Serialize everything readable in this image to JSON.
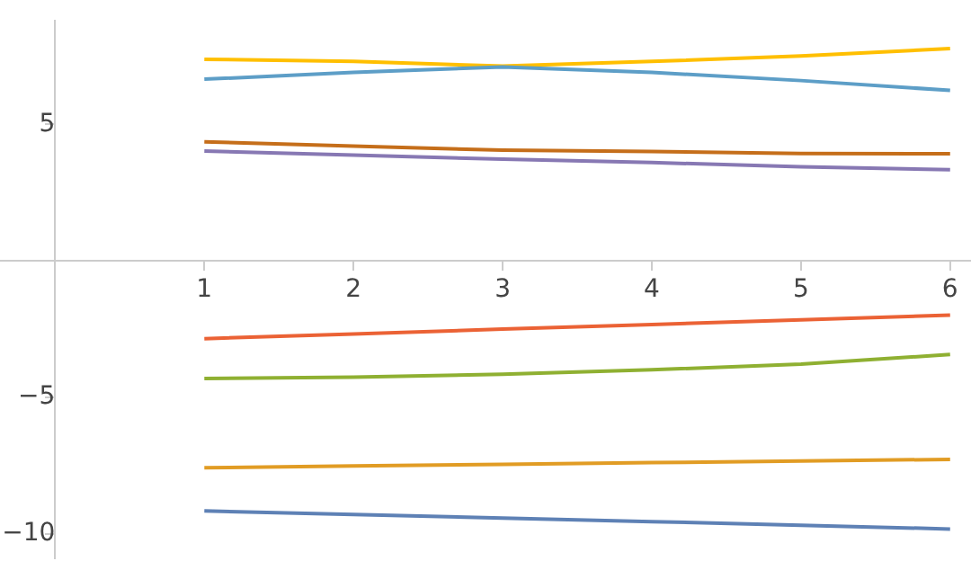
{
  "chart_data": {
    "type": "line",
    "x": [
      1,
      2,
      3,
      4,
      5,
      6
    ],
    "xlim": [
      -0.37,
      6.14
    ],
    "ylim": [
      -10.9,
      8.8
    ],
    "xticks": [
      1,
      2,
      3,
      4,
      5,
      6
    ],
    "yticks": [
      -10,
      -5,
      5
    ],
    "grid": false,
    "legend": false,
    "marker": "none",
    "series": [
      {
        "color": "#5e81b5",
        "values": [
          -9.16,
          -9.29,
          -9.42,
          -9.55,
          -9.68,
          -9.82
        ]
      },
      {
        "color": "#e19c24",
        "values": [
          -7.58,
          -7.51,
          -7.45,
          -7.39,
          -7.33,
          -7.27
        ]
      },
      {
        "color": "#8fb032",
        "values": [
          -4.31,
          -4.26,
          -4.15,
          -3.99,
          -3.78,
          -3.43
        ]
      },
      {
        "color": "#eb6235",
        "values": [
          -2.85,
          -2.68,
          -2.5,
          -2.33,
          -2.16,
          -1.99
        ]
      },
      {
        "color": "#8778b3",
        "values": [
          4.02,
          3.87,
          3.72,
          3.6,
          3.44,
          3.34
        ]
      },
      {
        "color": "#c56e1a",
        "values": [
          4.36,
          4.2,
          4.05,
          4.0,
          3.93,
          3.92
        ]
      },
      {
        "color": "#5d9ec7",
        "values": [
          6.65,
          6.9,
          7.1,
          6.9,
          6.6,
          6.24
        ]
      },
      {
        "color": "#ffbf00",
        "values": [
          7.38,
          7.3,
          7.13,
          7.3,
          7.5,
          7.77
        ]
      }
    ]
  }
}
